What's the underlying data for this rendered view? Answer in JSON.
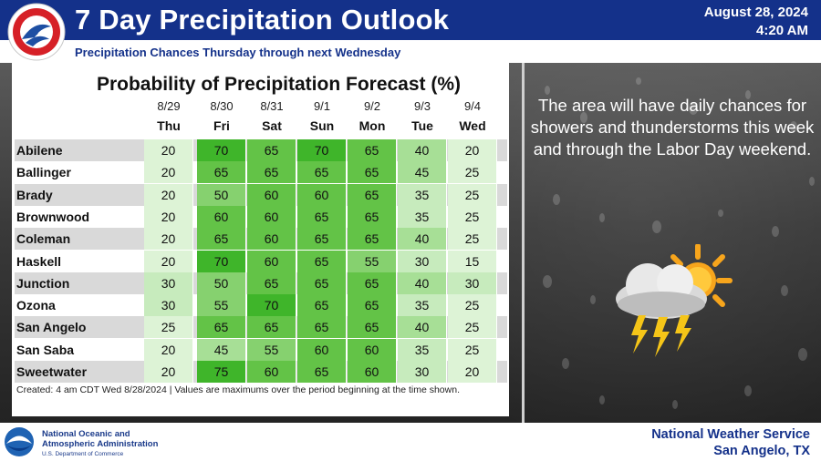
{
  "header": {
    "title": "7 Day Precipitation Outlook",
    "date": "August 28, 2024",
    "time": "4:20 AM",
    "subtitle": "Precipitation Chances Thursday through next Wednesday"
  },
  "table": {
    "title": "Probability of Precipitation Forecast (%)",
    "days": [
      {
        "date": "8/29",
        "name": "Thu"
      },
      {
        "date": "8/30",
        "name": "Fri"
      },
      {
        "date": "8/31",
        "name": "Sat"
      },
      {
        "date": "9/1",
        "name": "Sun"
      },
      {
        "date": "9/2",
        "name": "Mon"
      },
      {
        "date": "9/3",
        "name": "Tue"
      },
      {
        "date": "9/4",
        "name": "Wed"
      }
    ],
    "rows": [
      {
        "city": "Abilene",
        "values": [
          "20",
          "70",
          "65",
          "70",
          "65",
          "40",
          "20"
        ]
      },
      {
        "city": "Ballinger",
        "values": [
          "20",
          "65",
          "65",
          "65",
          "65",
          "45",
          "25"
        ]
      },
      {
        "city": "Brady",
        "values": [
          "20",
          "50",
          "60",
          "60",
          "65",
          "35",
          "25"
        ]
      },
      {
        "city": "Brownwood",
        "values": [
          "20",
          "60",
          "60",
          "65",
          "65",
          "35",
          "25"
        ]
      },
      {
        "city": "Coleman",
        "values": [
          "20",
          "65",
          "60",
          "65",
          "65",
          "40",
          "25"
        ]
      },
      {
        "city": "Haskell",
        "values": [
          "20",
          "70",
          "60",
          "65",
          "55",
          "30",
          "15"
        ]
      },
      {
        "city": "Junction",
        "values": [
          "30",
          "50",
          "65",
          "65",
          "65",
          "40",
          "30"
        ]
      },
      {
        "city": "Ozona",
        "values": [
          "30",
          "55",
          "70",
          "65",
          "65",
          "35",
          "25"
        ]
      },
      {
        "city": "San Angelo",
        "values": [
          "25",
          "65",
          "65",
          "65",
          "65",
          "40",
          "25"
        ]
      },
      {
        "city": "San Saba",
        "values": [
          "20",
          "45",
          "55",
          "60",
          "60",
          "35",
          "25"
        ]
      },
      {
        "city": "Sweetwater",
        "values": [
          "20",
          "75",
          "60",
          "65",
          "60",
          "30",
          "20"
        ]
      }
    ],
    "footnote": "Created: 4 am CDT Wed 8/28/2024  |  Values are maximums over the period beginning at the time shown."
  },
  "info_text": "The area will have daily chances for showers and thunderstorms this week and through the Labor Day weekend.",
  "footer": {
    "noaa_line1": "National Oceanic and",
    "noaa_line2": "Atmospheric Administration",
    "noaa_dept": "U.S. Department of Commerce",
    "office_line1": "National Weather Service",
    "office_line2": "San Angelo, TX"
  },
  "colors": {
    "header_blue": "#14318a",
    "green_levels": [
      "#ddf3d6",
      "#c7ebbd",
      "#a7df96",
      "#86d16f",
      "#63c347",
      "#3fb52a"
    ]
  },
  "icons": {
    "logo": "nws-logo-icon",
    "weather": "thunderstorm-sun-icon",
    "noaa": "noaa-logo-icon"
  }
}
